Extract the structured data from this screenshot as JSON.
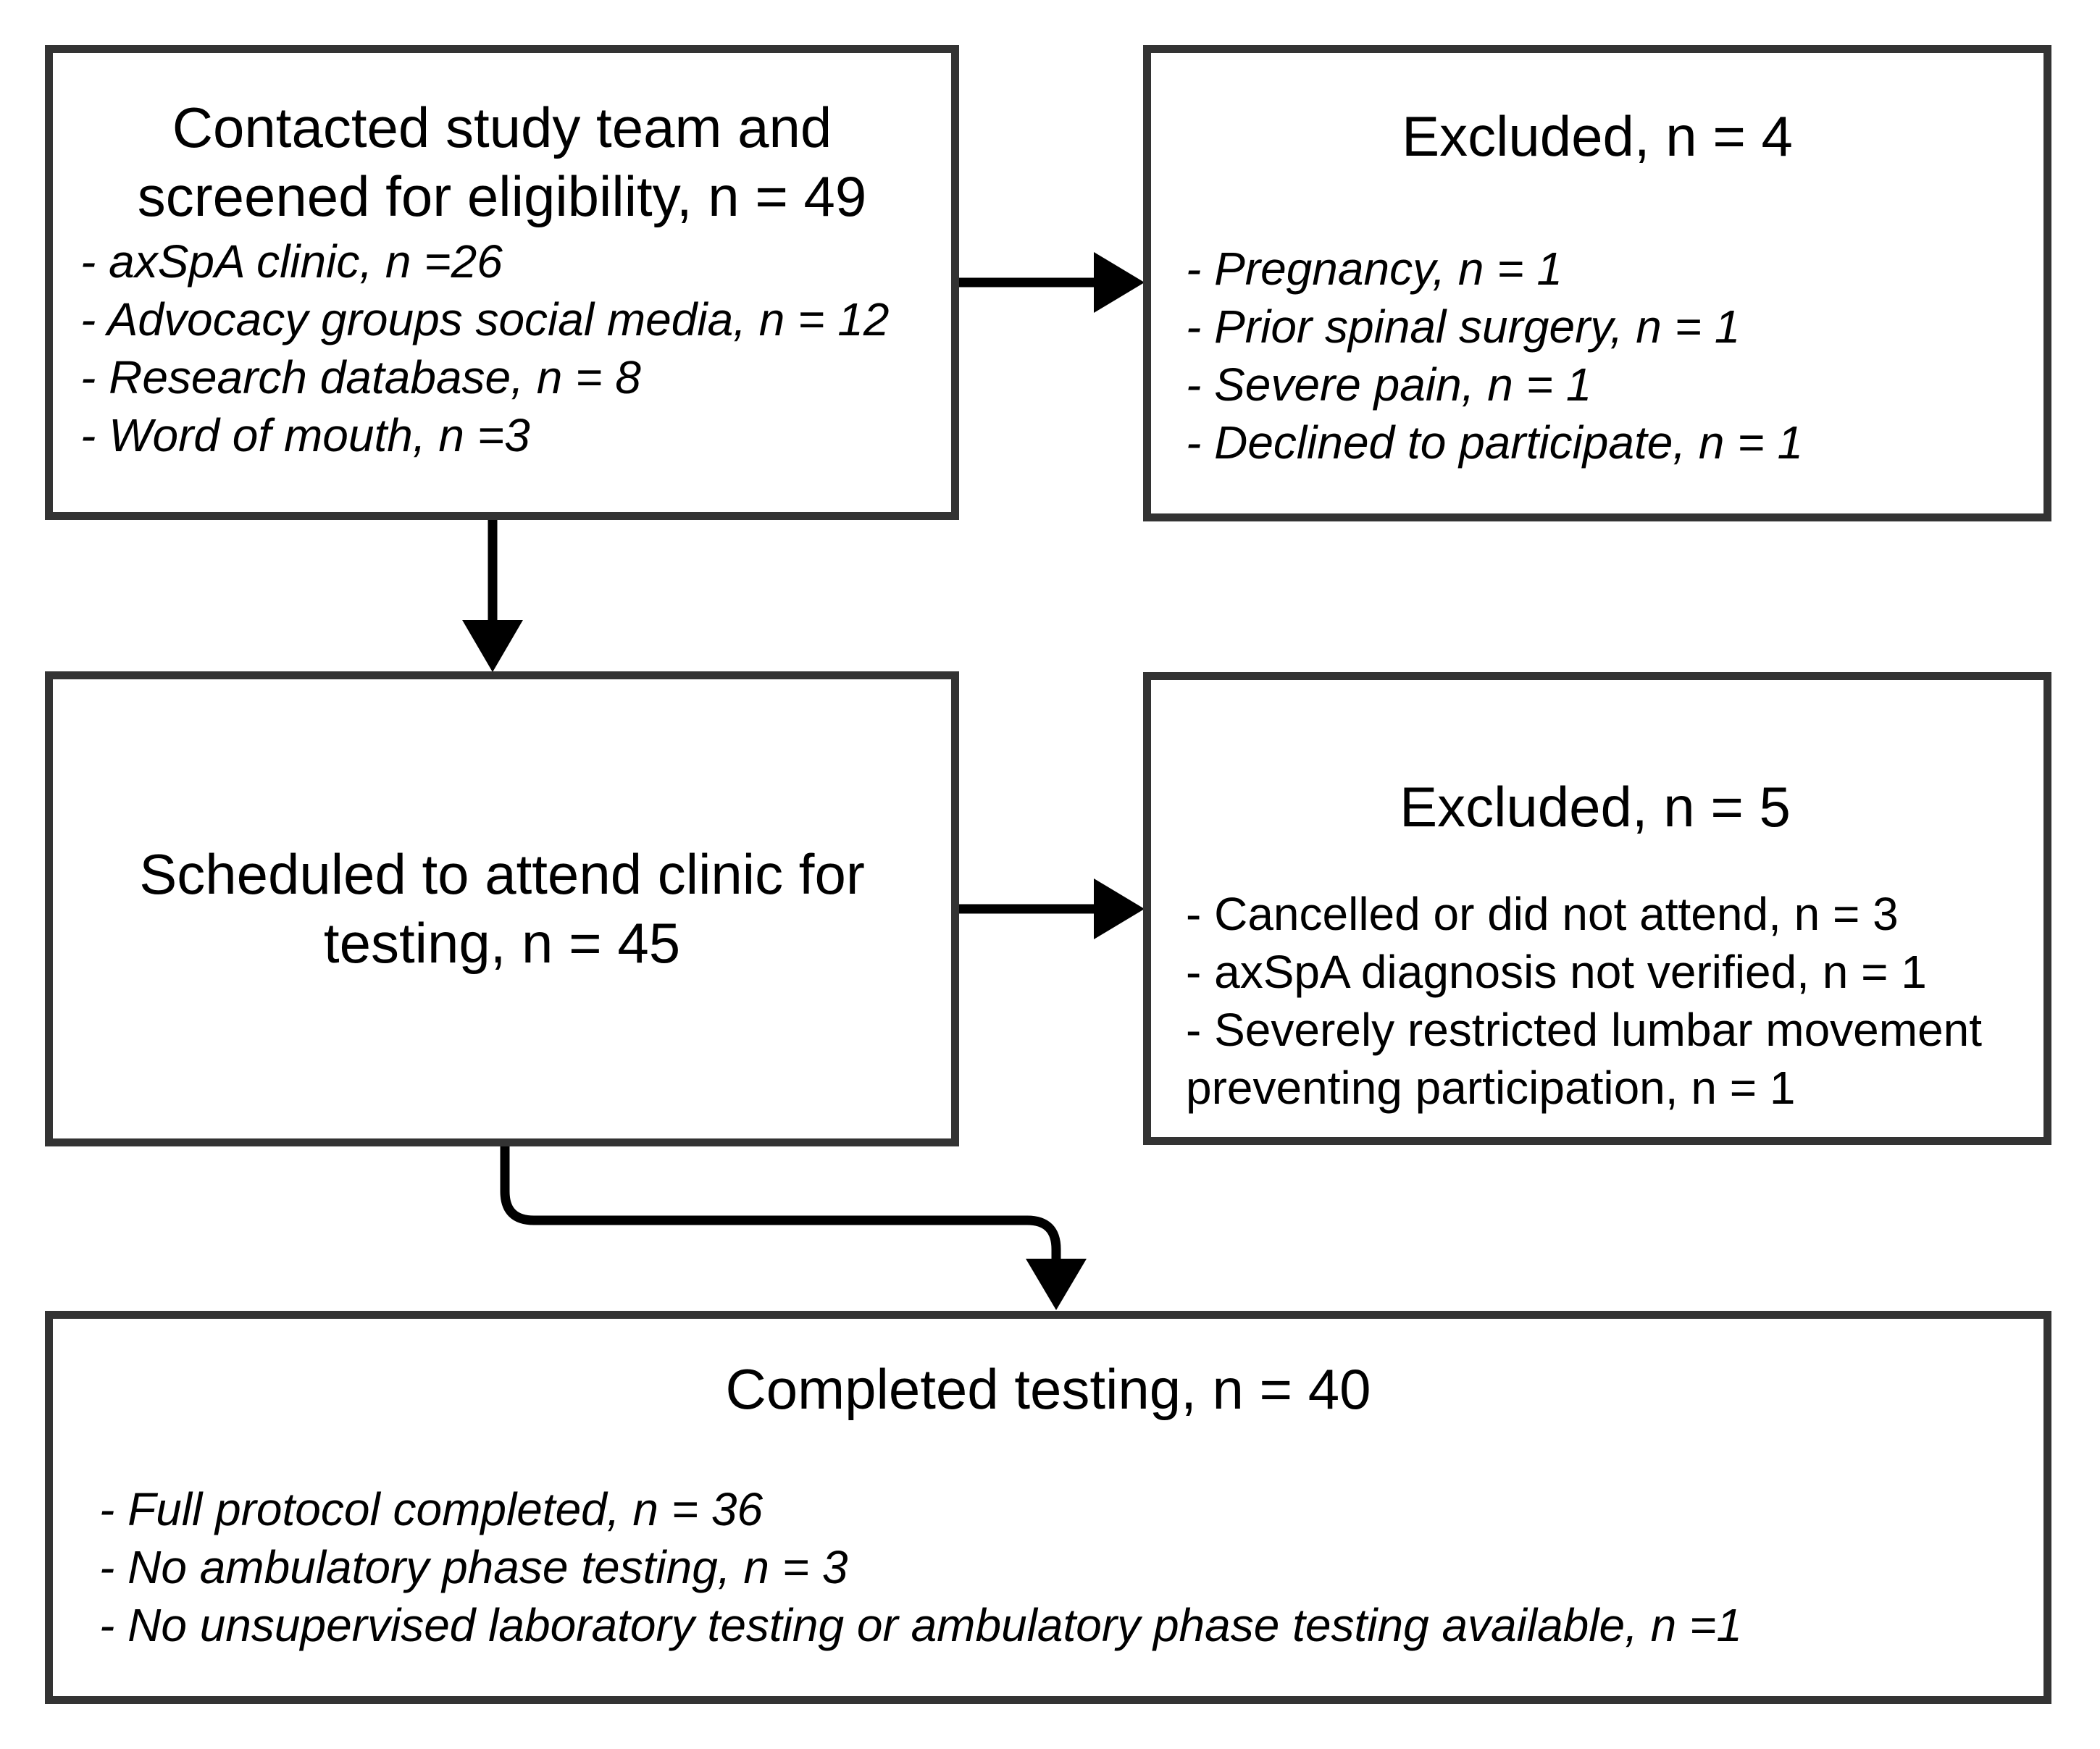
{
  "colors": {
    "background": "#ffffff",
    "box_border": "#333333",
    "text": "#000000",
    "arrow": "#000000"
  },
  "boxes": {
    "screened": {
      "title_lines": [
        "Contacted study team and",
        "screened for eligibility, n = 49"
      ],
      "bullets": [
        "- axSpA clinic, n =26",
        "- Advocacy groups social media, n = 12",
        "- Research database, n = 8",
        "- Word of mouth, n =3"
      ]
    },
    "excluded_screening": {
      "title": "Excluded, n = 4",
      "bullets": [
        "- Pregnancy, n = 1",
        "- Prior spinal surgery, n = 1",
        "- Severe pain, n = 1",
        "- Declined to participate, n = 1"
      ]
    },
    "scheduled": {
      "title_lines": [
        "Scheduled to attend clinic for",
        "testing, n = 45"
      ]
    },
    "excluded_scheduled": {
      "title": "Excluded, n = 5",
      "bullets": [
        "- Cancelled or did not attend, n = 3",
        "- axSpA diagnosis not verified, n = 1",
        "- Severely restricted lumbar movement preventing participation, n = 1"
      ]
    },
    "completed": {
      "title": "Completed testing, n = 40",
      "bullets": [
        "- Full protocol completed, n = 36",
        "- No ambulatory phase testing, n = 3",
        "- No unsupervised laboratory testing or ambulatory phase testing available, n =1"
      ]
    }
  }
}
